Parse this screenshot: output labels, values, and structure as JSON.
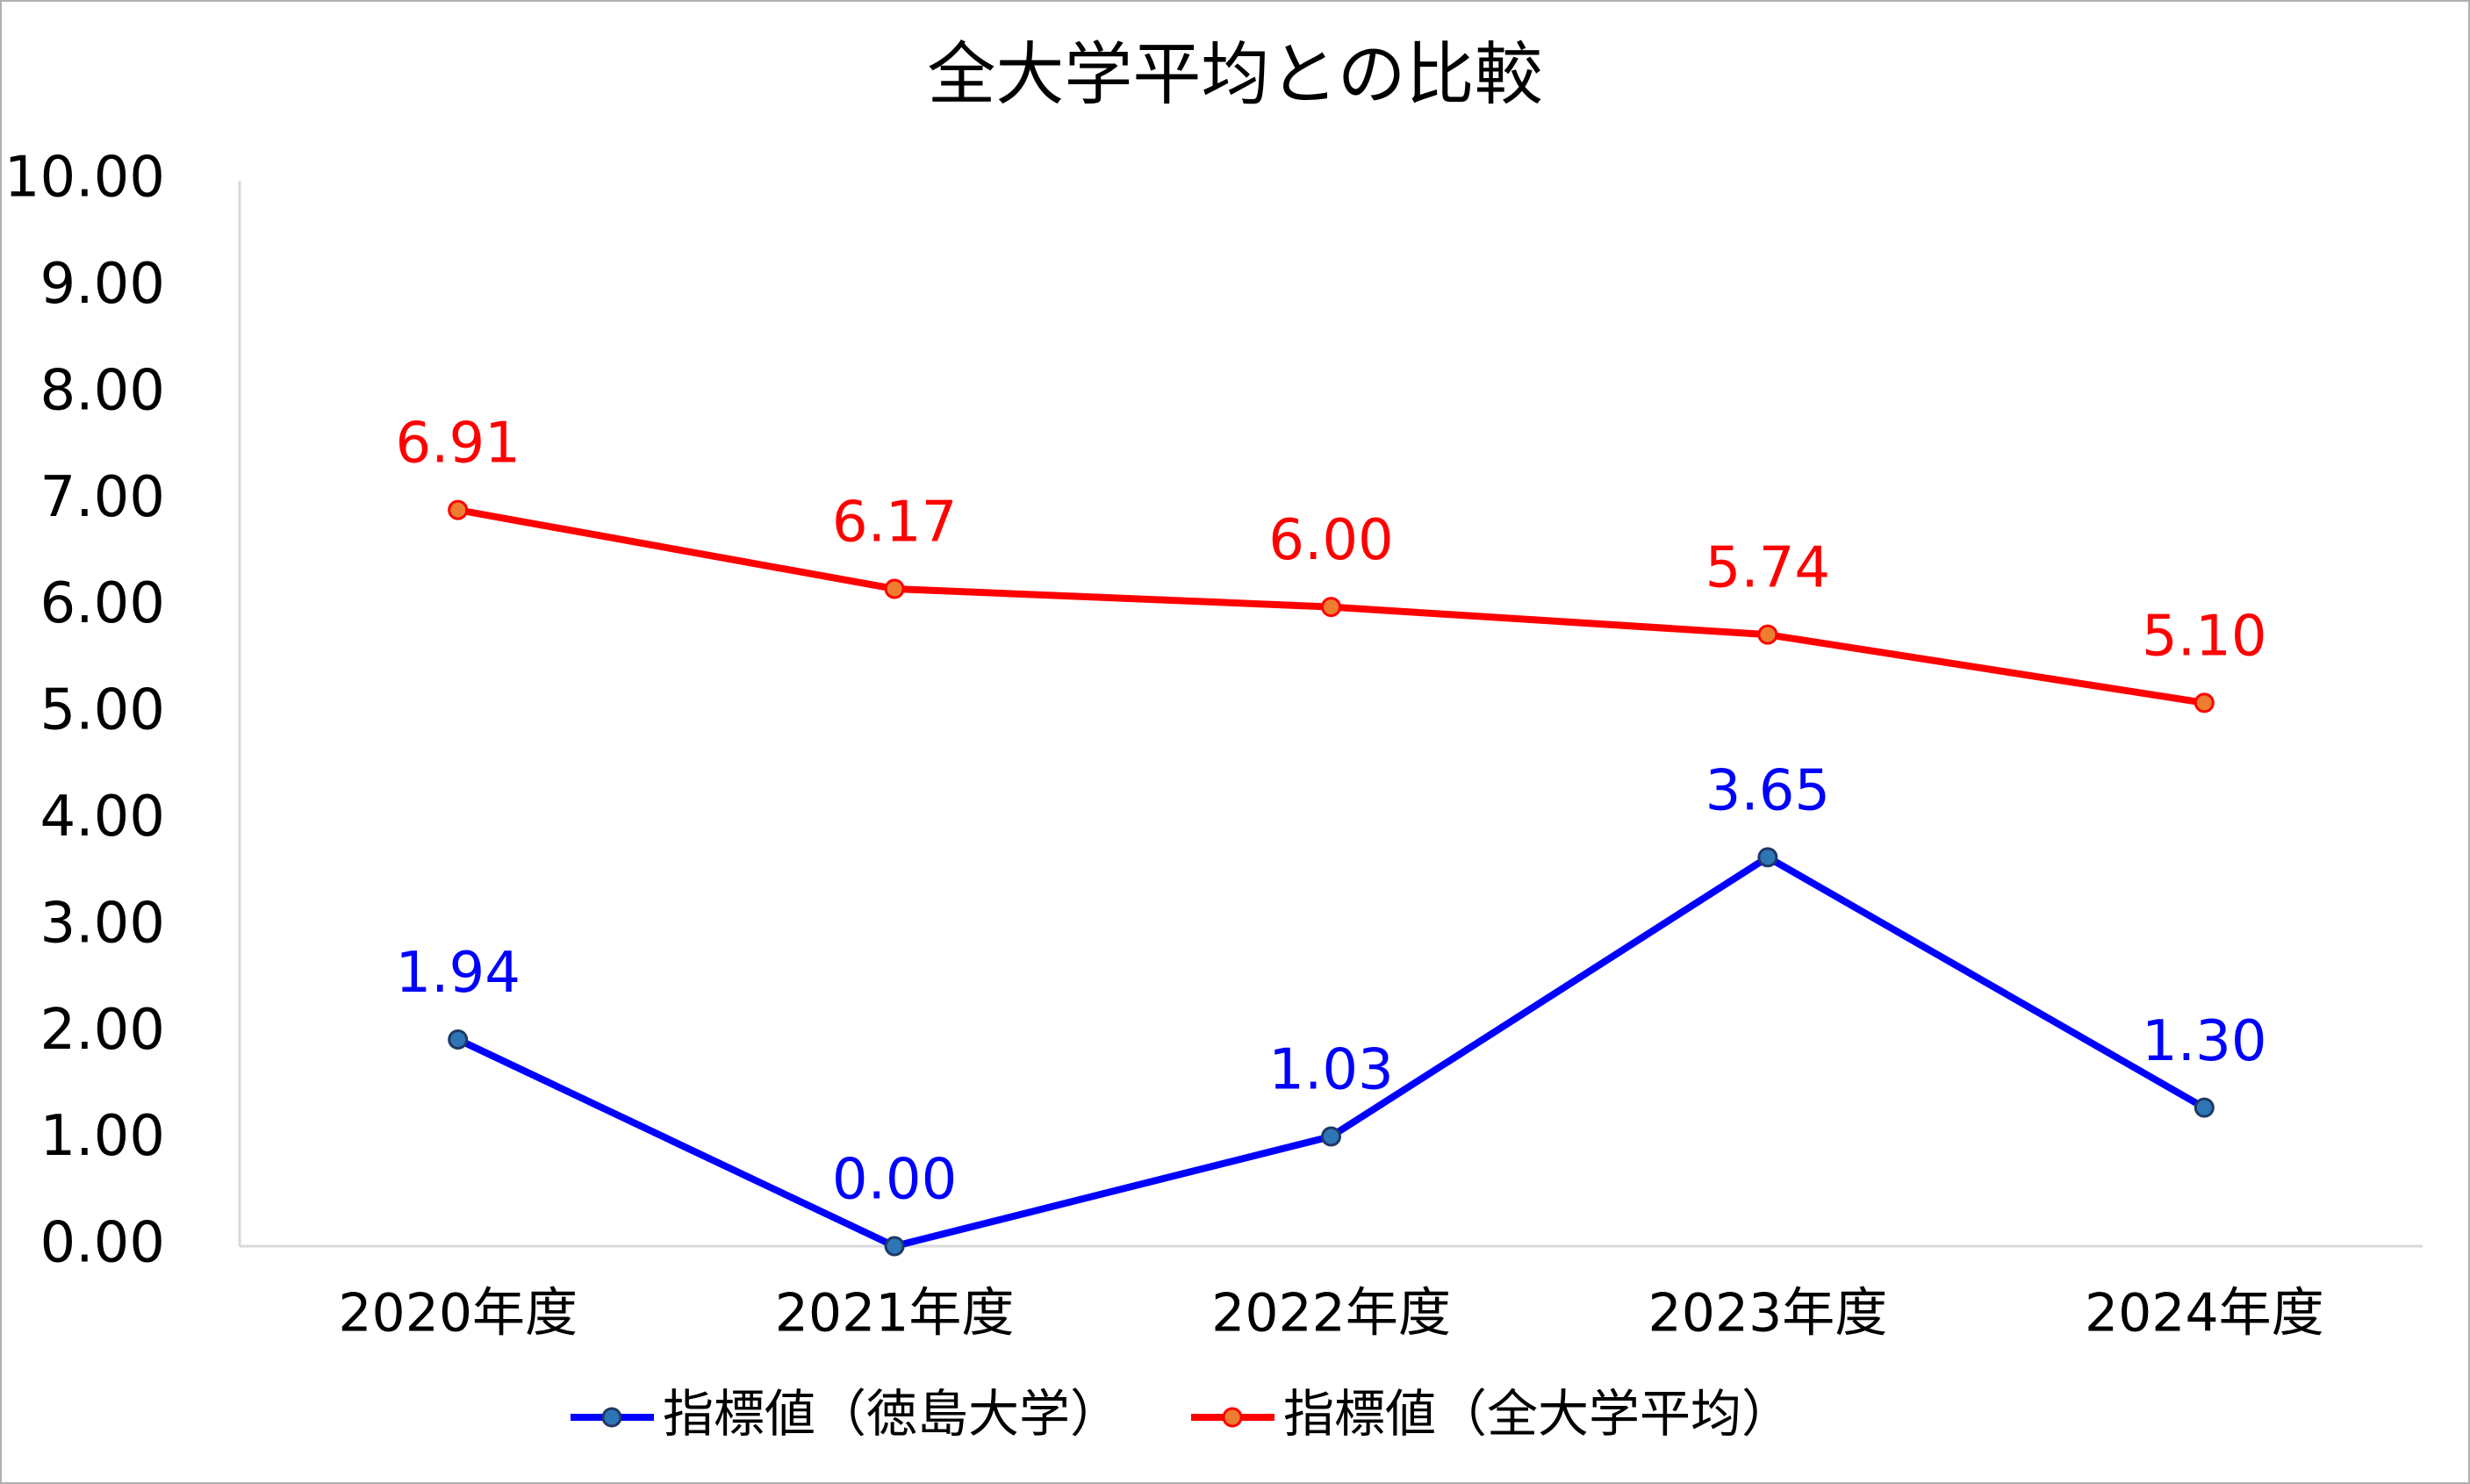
{
  "chart_data": {
    "type": "line",
    "title": "全大学平均との比較",
    "categories": [
      "2020年度",
      "2021年度",
      "2022年度",
      "2023年度",
      "2024年度"
    ],
    "series": [
      {
        "name": "指標値（徳島大学）",
        "color": "#0000ff",
        "marker_color": "#2e75b6",
        "values": [
          1.94,
          0,
          1.03,
          3.65,
          1.3
        ],
        "value_labels": [
          "1.94",
          "0.00",
          "1.03",
          "3.65",
          "1.30"
        ]
      },
      {
        "name": "指標値（全大学平均）",
        "color": "#ff0000",
        "marker_color": "#ed7d31",
        "values": [
          6.91,
          6.17,
          6.0,
          5.74,
          5.1
        ],
        "value_labels": [
          "6.91",
          "6.17",
          "6.00",
          "5.74",
          "5.10"
        ]
      }
    ],
    "ylim": [
      0,
      10
    ],
    "yticks": [
      {
        "value": 0,
        "label": "0.00"
      },
      {
        "value": 1,
        "label": "1.00"
      },
      {
        "value": 2,
        "label": "2.00"
      },
      {
        "value": 3,
        "label": "3.00"
      },
      {
        "value": 4,
        "label": "4.00"
      },
      {
        "value": 5,
        "label": "5.00"
      },
      {
        "value": 6,
        "label": "6.00"
      },
      {
        "value": 7,
        "label": "7.00"
      },
      {
        "value": 8,
        "label": "8.00"
      },
      {
        "value": 9,
        "label": "9.00"
      },
      {
        "value": 10,
        "label": "10.00"
      }
    ],
    "grid": false,
    "legend": "bottom"
  }
}
